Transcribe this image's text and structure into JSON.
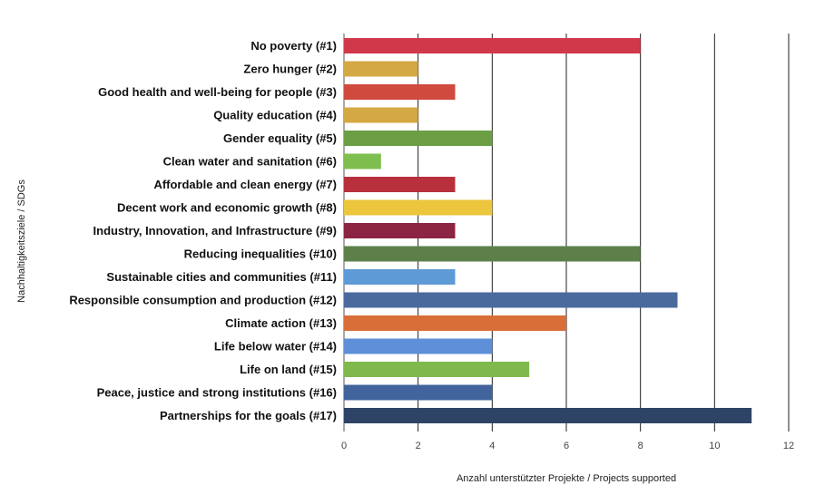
{
  "chart_data": {
    "type": "bar",
    "orientation": "horizontal",
    "xlabel": "Anzahl unterstützter Projekte / Projects supported",
    "ylabel": "Nachhaltigkeitsziele / SDGs",
    "xlim": [
      0,
      12
    ],
    "xticks": [
      0,
      2,
      4,
      6,
      8,
      10,
      12
    ],
    "grid": true,
    "legend": "none",
    "categories": [
      "No poverty (#1)",
      "Zero hunger (#2)",
      "Good health and well-being for people (#3)",
      "Quality education (#4)",
      "Gender equality (#5)",
      "Clean water and sanitation (#6)",
      "Affordable and clean energy (#7)",
      "Decent work and economic growth (#8)",
      "Industry, Innovation, and Infrastructure (#9)",
      "Reducing inequalities (#10)",
      "Sustainable cities and communities (#11)",
      "Responsible consumption and production (#12)",
      "Climate action (#13)",
      "Life below water (#14)",
      "Life on land (#15)",
      "Peace, justice and strong institutions (#16)",
      "Partnerships for the goals (#17)"
    ],
    "values": [
      8,
      2,
      3,
      2,
      4,
      1,
      3,
      4,
      3,
      8,
      3,
      9,
      6,
      4,
      5,
      4,
      11
    ],
    "colors": [
      "#d1394a",
      "#d4a943",
      "#d04a3d",
      "#d4a943",
      "#6b9e45",
      "#7fbf4f",
      "#b7303b",
      "#ecc63d",
      "#8c2444",
      "#5d804a",
      "#5e9ad6",
      "#4a6a9e",
      "#d96f38",
      "#5e8fd8",
      "#7fb94e",
      "#41649c",
      "#2e4366"
    ]
  }
}
